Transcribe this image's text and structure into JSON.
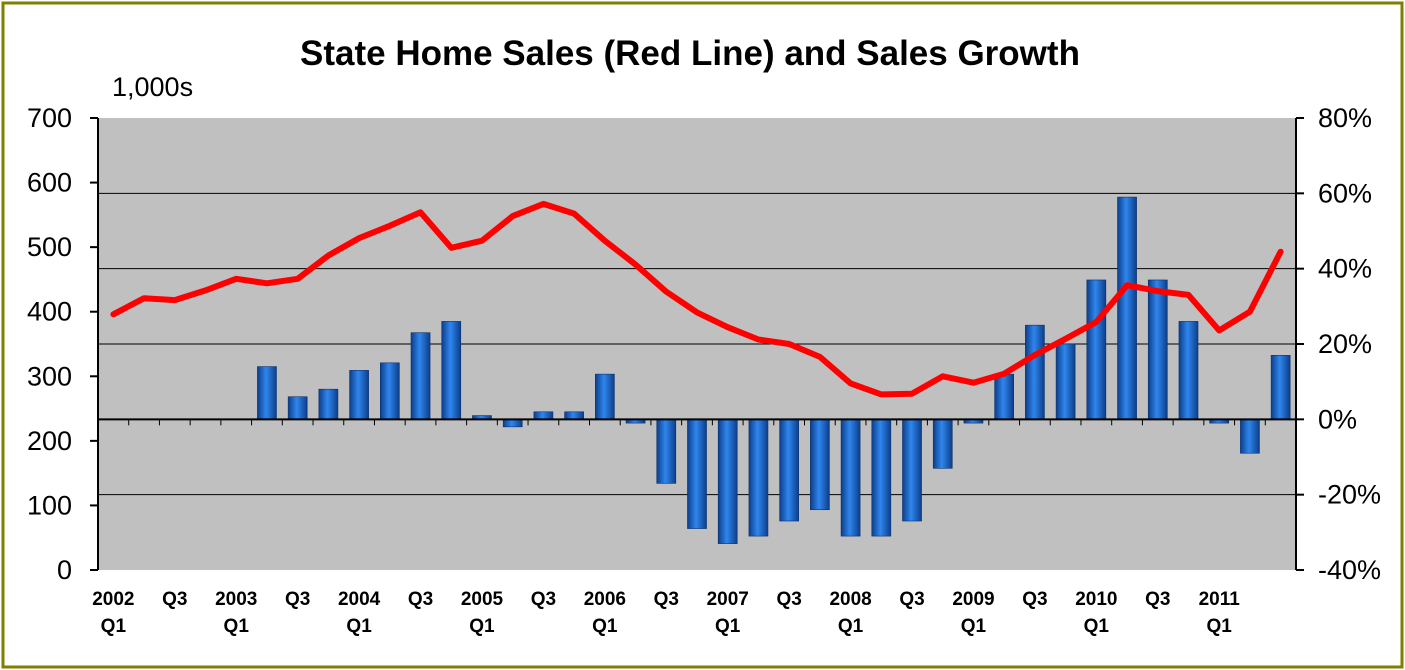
{
  "chart_data": {
    "type": "bar+line",
    "title": "State Home Sales (Red Line) and Sales Growth",
    "left_axis": {
      "unit_label": "1,000s",
      "min": 0,
      "max": 700,
      "ticks": [
        "0",
        "100",
        "200",
        "300",
        "400",
        "500",
        "600",
        "700"
      ]
    },
    "right_axis": {
      "min": -40,
      "max": 80,
      "ticks": [
        "-40%",
        "-20%",
        "0%",
        "20%",
        "40%",
        "60%",
        "80%"
      ]
    },
    "x_tick_labels": [
      {
        "year": "2002",
        "q": "Q1"
      },
      {
        "year": "",
        "q": "Q3"
      },
      {
        "year": "2003",
        "q": "Q1"
      },
      {
        "year": "",
        "q": "Q3"
      },
      {
        "year": "2004",
        "q": "Q1"
      },
      {
        "year": "",
        "q": "Q3"
      },
      {
        "year": "2005",
        "q": "Q1"
      },
      {
        "year": "",
        "q": "Q3"
      },
      {
        "year": "2006",
        "q": "Q1"
      },
      {
        "year": "",
        "q": "Q3"
      },
      {
        "year": "2007",
        "q": "Q1"
      },
      {
        "year": "",
        "q": "Q3"
      },
      {
        "year": "2008",
        "q": "Q1"
      },
      {
        "year": "",
        "q": "Q3"
      },
      {
        "year": "2009",
        "q": "Q1"
      },
      {
        "year": "",
        "q": "Q3"
      },
      {
        "year": "2010",
        "q": "Q1"
      },
      {
        "year": "",
        "q": "Q3"
      },
      {
        "year": "2011",
        "q": "Q1"
      }
    ],
    "series": [
      {
        "type": "line",
        "axis": "left",
        "color": "#ff0000",
        "values": [
          396,
          421,
          418,
          433,
          451,
          444,
          451,
          487,
          514,
          533,
          554,
          499,
          510,
          548,
          567,
          552,
          510,
          473,
          431,
          399,
          376,
          357,
          350,
          330,
          289,
          272,
          273,
          300,
          290,
          304,
          333,
          358,
          384,
          441,
          432,
          426,
          371,
          400,
          493
        ]
      },
      {
        "type": "bar",
        "axis": "right",
        "color": "#1f6fd6",
        "values": [
          0,
          0,
          0,
          0,
          0,
          14,
          6,
          8,
          13,
          15,
          23,
          26,
          1,
          -2,
          2,
          2,
          12,
          -1,
          -17,
          -29,
          -33,
          -31,
          -27,
          -24,
          -31,
          -31,
          -27,
          -13,
          -1,
          12,
          25,
          20,
          37,
          59,
          37,
          26,
          -1,
          -9,
          17
        ]
      }
    ],
    "grid": true
  },
  "colors": {
    "plot_background": "#c0c0c0",
    "frame_border": "#7f7f00",
    "line": "#ff0000",
    "bar": "#1f6fd6"
  }
}
